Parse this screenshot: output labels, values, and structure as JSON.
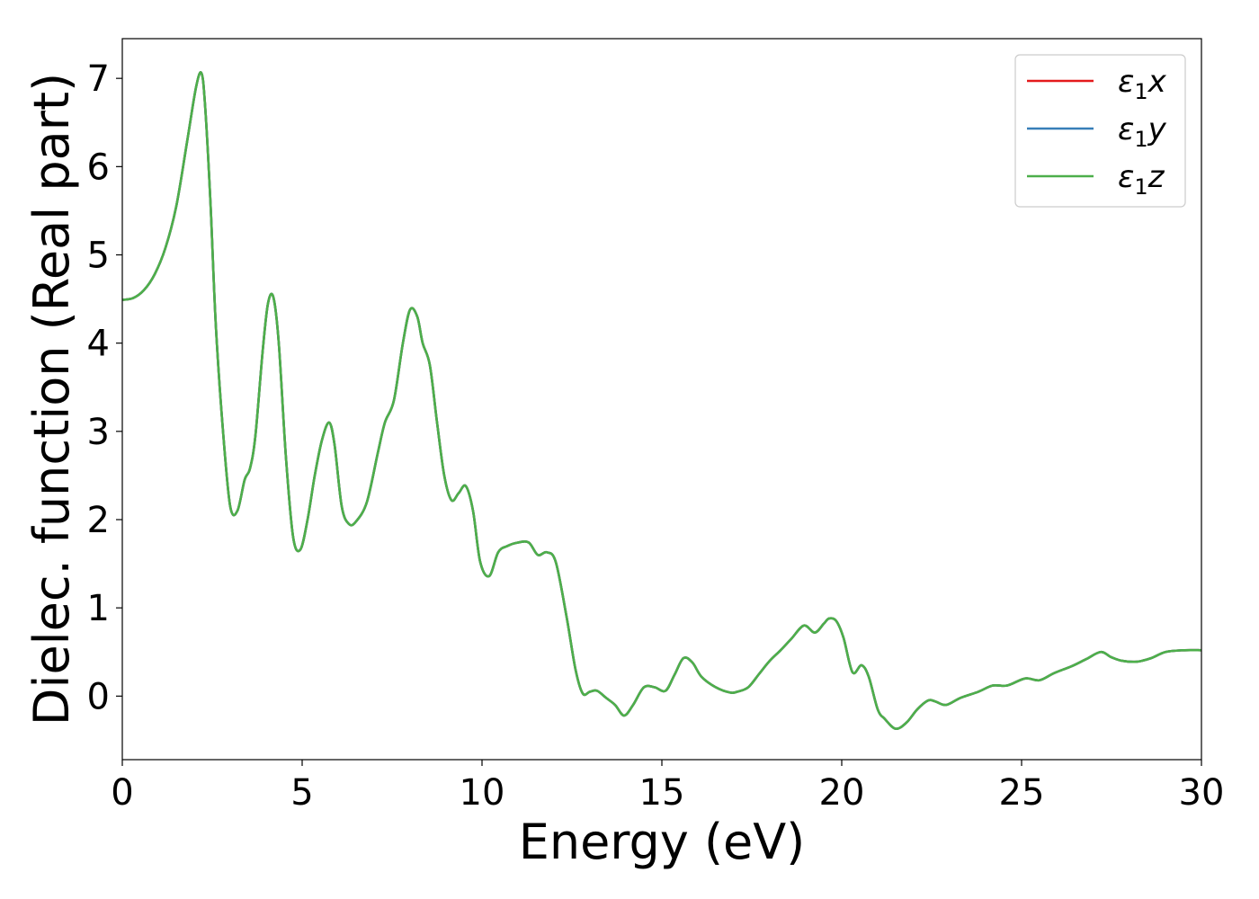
{
  "chart_data": {
    "type": "line",
    "xlabel": "Energy (eV)",
    "ylabel": "Dielec. function (Real part)",
    "xlim": [
      0,
      30
    ],
    "ylim": [
      -0.72,
      7.45
    ],
    "x_ticks": [
      0,
      5,
      10,
      15,
      20,
      25,
      30
    ],
    "y_ticks": [
      0,
      1,
      2,
      3,
      4,
      5,
      6,
      7
    ],
    "x_tick_labels": [
      "0",
      "5",
      "10",
      "15",
      "20",
      "25",
      "30"
    ],
    "y_tick_labels": [
      "0",
      "1",
      "2",
      "3",
      "4",
      "5",
      "6",
      "7"
    ],
    "grid": false,
    "legend_position": "top-right",
    "legend": [
      {
        "symbol": "ε",
        "sub": "1",
        "axis": "x",
        "color": "#e41a1c"
      },
      {
        "symbol": "ε",
        "sub": "1",
        "axis": "y",
        "color": "#377eb8"
      },
      {
        "symbol": "ε",
        "sub": "1",
        "axis": "z",
        "color": "#4daf4a"
      }
    ],
    "x": [
      0,
      0.3,
      0.6,
      0.9,
      1.2,
      1.5,
      1.8,
      2.05,
      2.2,
      2.3,
      2.45,
      2.6,
      2.8,
      3.0,
      3.2,
      3.4,
      3.55,
      3.7,
      3.9,
      4.05,
      4.2,
      4.35,
      4.55,
      4.75,
      4.95,
      5.15,
      5.35,
      5.55,
      5.75,
      5.9,
      6.1,
      6.3,
      6.5,
      6.8,
      7.1,
      7.3,
      7.55,
      7.8,
      8.0,
      8.2,
      8.35,
      8.55,
      8.75,
      8.95,
      9.15,
      9.35,
      9.55,
      9.75,
      9.95,
      10.2,
      10.45,
      10.7,
      11.0,
      11.3,
      11.55,
      11.8,
      12.05,
      12.35,
      12.6,
      12.8,
      13.0,
      13.2,
      13.45,
      13.7,
      13.95,
      14.2,
      14.5,
      14.8,
      15.1,
      15.35,
      15.6,
      15.85,
      16.1,
      16.5,
      16.9,
      17.1,
      17.4,
      17.7,
      18.0,
      18.3,
      18.6,
      18.95,
      19.25,
      19.5,
      19.65,
      19.85,
      20.05,
      20.3,
      20.55,
      20.75,
      21.0,
      21.2,
      21.5,
      21.8,
      22.1,
      22.4,
      22.6,
      22.9,
      23.3,
      23.8,
      24.2,
      24.6,
      25.1,
      25.5,
      25.9,
      26.4,
      26.8,
      27.2,
      27.5,
      27.8,
      28.2,
      28.6,
      29.0,
      29.5,
      30.0
    ],
    "series": [
      {
        "values": [
          4.49,
          4.51,
          4.6,
          4.78,
          5.08,
          5.55,
          6.28,
          6.9,
          7.06,
          6.7,
          5.6,
          4.2,
          3.0,
          2.15,
          2.1,
          2.45,
          2.58,
          2.95,
          3.9,
          4.45,
          4.52,
          4.0,
          2.7,
          1.8,
          1.66,
          2.0,
          2.5,
          2.9,
          3.1,
          2.85,
          2.15,
          1.95,
          1.98,
          2.2,
          2.75,
          3.1,
          3.35,
          4.0,
          4.38,
          4.3,
          4.0,
          3.75,
          3.1,
          2.5,
          2.22,
          2.3,
          2.38,
          2.1,
          1.52,
          1.36,
          1.63,
          1.7,
          1.74,
          1.74,
          1.6,
          1.63,
          1.52,
          0.9,
          0.3,
          0.03,
          0.05,
          0.06,
          -0.02,
          -0.1,
          -0.22,
          -0.1,
          0.1,
          0.1,
          0.06,
          0.24,
          0.43,
          0.38,
          0.22,
          0.1,
          0.04,
          0.05,
          0.1,
          0.25,
          0.4,
          0.52,
          0.65,
          0.8,
          0.72,
          0.82,
          0.88,
          0.85,
          0.66,
          0.27,
          0.35,
          0.22,
          -0.15,
          -0.26,
          -0.37,
          -0.3,
          -0.15,
          -0.05,
          -0.06,
          -0.1,
          -0.02,
          0.05,
          0.12,
          0.12,
          0.2,
          0.18,
          0.26,
          0.34,
          0.42,
          0.5,
          0.44,
          0.4,
          0.39,
          0.43,
          0.5,
          0.52,
          0.52
        ]
      },
      {
        "values": [
          4.49,
          4.51,
          4.6,
          4.78,
          5.08,
          5.55,
          6.28,
          6.9,
          7.06,
          6.7,
          5.6,
          4.2,
          3.0,
          2.15,
          2.1,
          2.45,
          2.58,
          2.95,
          3.9,
          4.45,
          4.52,
          4.0,
          2.7,
          1.8,
          1.66,
          2.0,
          2.5,
          2.9,
          3.1,
          2.85,
          2.15,
          1.95,
          1.98,
          2.2,
          2.75,
          3.1,
          3.35,
          4.0,
          4.38,
          4.3,
          4.0,
          3.75,
          3.1,
          2.5,
          2.22,
          2.3,
          2.38,
          2.1,
          1.52,
          1.36,
          1.63,
          1.7,
          1.74,
          1.74,
          1.6,
          1.63,
          1.52,
          0.9,
          0.3,
          0.03,
          0.05,
          0.06,
          -0.02,
          -0.1,
          -0.22,
          -0.1,
          0.1,
          0.1,
          0.06,
          0.24,
          0.43,
          0.38,
          0.22,
          0.1,
          0.04,
          0.05,
          0.1,
          0.25,
          0.4,
          0.52,
          0.65,
          0.8,
          0.72,
          0.82,
          0.88,
          0.85,
          0.66,
          0.27,
          0.35,
          0.22,
          -0.15,
          -0.26,
          -0.37,
          -0.3,
          -0.15,
          -0.05,
          -0.06,
          -0.1,
          -0.02,
          0.05,
          0.12,
          0.12,
          0.2,
          0.18,
          0.26,
          0.34,
          0.42,
          0.5,
          0.44,
          0.4,
          0.39,
          0.43,
          0.5,
          0.52,
          0.52
        ]
      },
      {
        "values": [
          4.49,
          4.51,
          4.6,
          4.78,
          5.08,
          5.55,
          6.28,
          6.9,
          7.06,
          6.7,
          5.6,
          4.2,
          3.0,
          2.15,
          2.1,
          2.45,
          2.58,
          2.95,
          3.9,
          4.45,
          4.52,
          4.0,
          2.7,
          1.8,
          1.66,
          2.0,
          2.5,
          2.9,
          3.1,
          2.85,
          2.15,
          1.95,
          1.98,
          2.2,
          2.75,
          3.1,
          3.35,
          4.0,
          4.38,
          4.3,
          4.0,
          3.75,
          3.1,
          2.5,
          2.22,
          2.3,
          2.38,
          2.1,
          1.52,
          1.36,
          1.63,
          1.7,
          1.74,
          1.74,
          1.6,
          1.63,
          1.52,
          0.9,
          0.3,
          0.03,
          0.05,
          0.06,
          -0.02,
          -0.1,
          -0.22,
          -0.1,
          0.1,
          0.1,
          0.06,
          0.24,
          0.43,
          0.38,
          0.22,
          0.1,
          0.04,
          0.05,
          0.1,
          0.25,
          0.4,
          0.52,
          0.65,
          0.8,
          0.72,
          0.82,
          0.88,
          0.85,
          0.66,
          0.27,
          0.35,
          0.22,
          -0.15,
          -0.26,
          -0.37,
          -0.3,
          -0.15,
          -0.05,
          -0.06,
          -0.1,
          -0.02,
          0.05,
          0.12,
          0.12,
          0.2,
          0.18,
          0.26,
          0.34,
          0.42,
          0.5,
          0.44,
          0.4,
          0.39,
          0.43,
          0.5,
          0.52,
          0.52
        ]
      }
    ]
  }
}
